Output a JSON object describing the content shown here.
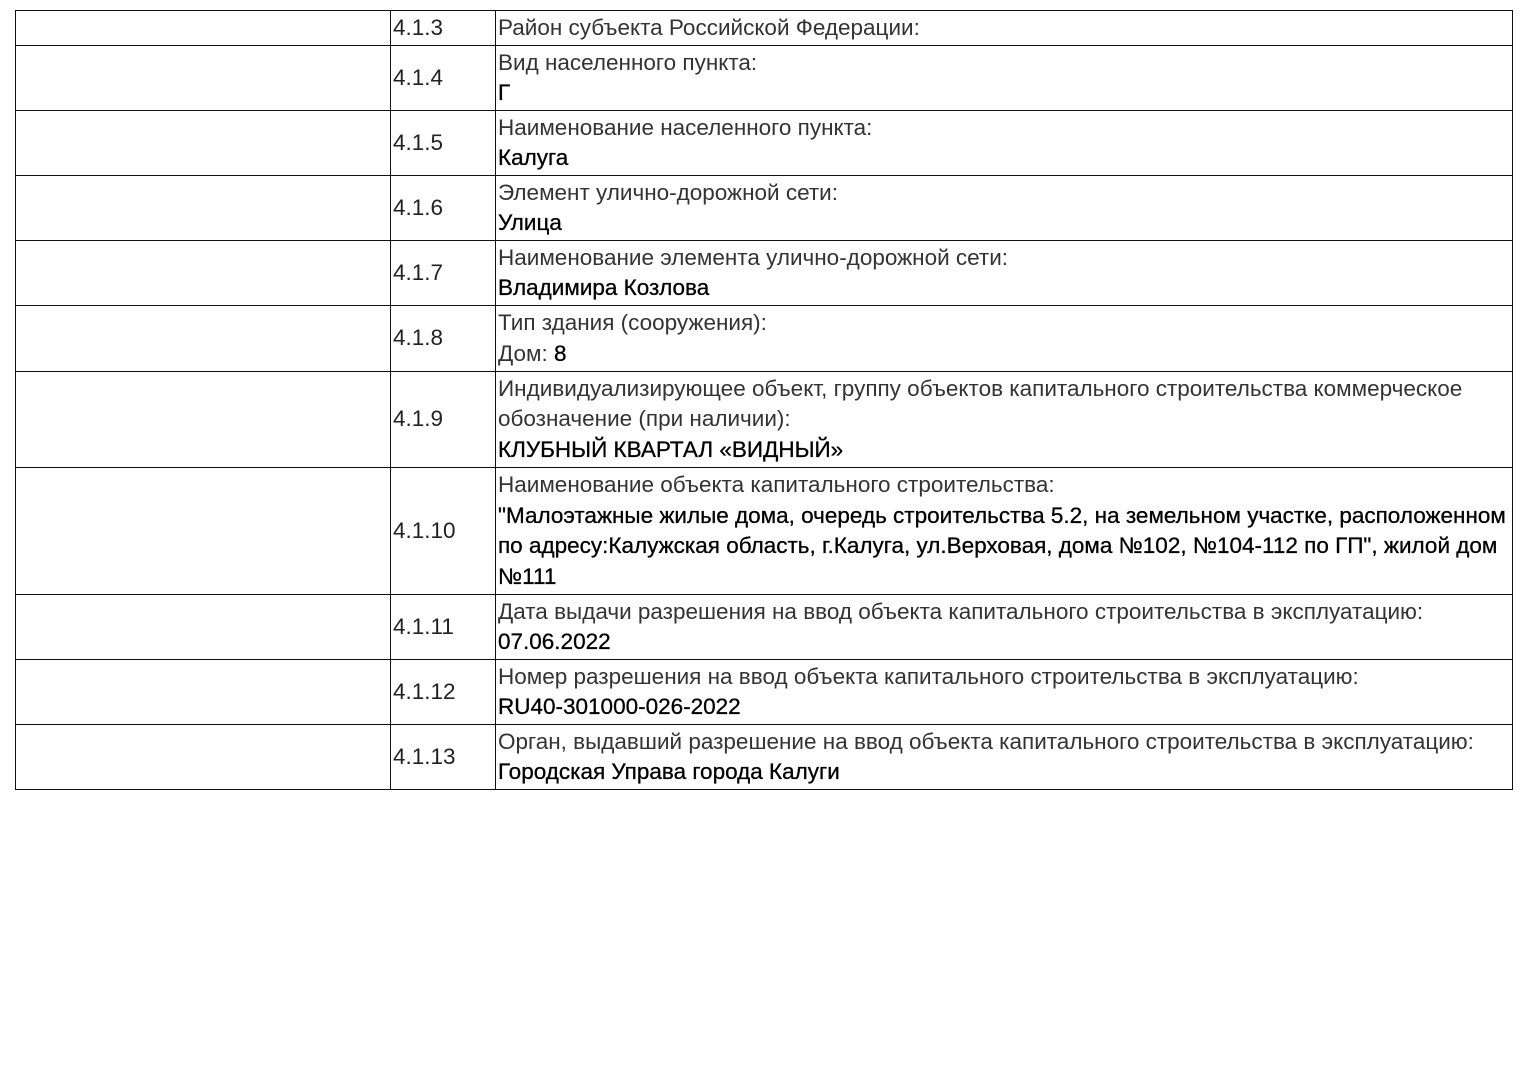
{
  "rows": [
    {
      "num": "4.1.3",
      "label": "Район субъекта Российской Федерации:",
      "value": ""
    },
    {
      "num": "4.1.4",
      "label": "Вид населенного пункта:",
      "value": "Г"
    },
    {
      "num": "4.1.5",
      "label": "Наименование населенного пункта:",
      "value": "Калуга"
    },
    {
      "num": "4.1.6",
      "label": "Элемент улично-дорожной сети:",
      "value": "Улица"
    },
    {
      "num": "4.1.7",
      "label": "Наименование элемента улично-дорожной сети:",
      "value": "Владимира Козлова"
    },
    {
      "num": "4.1.8",
      "label": "Тип здания (сооружения):",
      "prefix": "Дом:",
      "value": "8"
    },
    {
      "num": "4.1.9",
      "label": "Индивидуализирующее объект, группу объектов капитального строительства коммерческое обозначение (при наличии):",
      "value": "КЛУБНЫЙ КВАРТАЛ «ВИДНЫЙ»"
    },
    {
      "num": "4.1.10",
      "label": "Наименование объекта капитального строительства:",
      "value": "\"Малоэтажные жилые дома, очередь строительства 5.2, на земельном участке, расположенном по адресу:Калужская область, г.Калуга, ул.Верховая, дома №102, №104-112 по ГП\", жилой дом №111"
    },
    {
      "num": "4.1.11",
      "label": "Дата выдачи разрешения на ввод объекта капитального строительства в эксплуатацию:",
      "value": "07.06.2022"
    },
    {
      "num": "4.1.12",
      "label": "Номер разрешения на ввод объекта капитального строительства в эксплуатацию:",
      "value": "RU40-301000-026-2022"
    },
    {
      "num": "4.1.13",
      "label": "Орган, выдавший разрешение на ввод объекта капитального строительства в эксплуатацию:",
      "value": "Городская Управа города Калуги"
    }
  ]
}
